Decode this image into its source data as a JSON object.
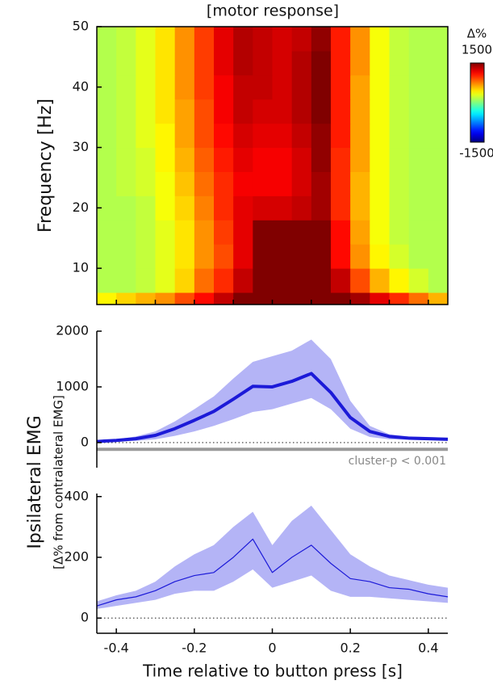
{
  "chart_data": [
    {
      "type": "heatmap",
      "title": "[motor response]",
      "ylabel": "Frequency [Hz]",
      "colormap": "jet",
      "clim": [
        -1500,
        1500
      ],
      "cticks": [
        -1500,
        1500
      ],
      "colorbar_label": "Δ%",
      "xlim": [
        -0.45,
        0.45
      ],
      "ylim": [
        4,
        50
      ],
      "xticks": [
        -0.4,
        -0.3,
        -0.2,
        -0.1,
        0,
        0.1,
        0.2,
        0.3,
        0.4
      ],
      "yticks": [
        10,
        20,
        30,
        40,
        50
      ],
      "x": [
        -0.45,
        -0.4,
        -0.35,
        -0.3,
        -0.25,
        -0.2,
        -0.15,
        -0.1,
        -0.05,
        0,
        0.05,
        0.1,
        0.15,
        0.2,
        0.25,
        0.3,
        0.35,
        0.4,
        0.45
      ],
      "y": [
        4,
        6,
        10,
        14,
        18,
        22,
        26,
        30,
        34,
        38,
        42,
        46,
        50
      ],
      "values": [
        [
          400,
          500,
          600,
          700,
          900,
          1100,
          1300,
          1500,
          1500,
          1500,
          1500,
          1500,
          1500,
          1400,
          1200,
          1000,
          800,
          600
        ],
        [
          150,
          150,
          200,
          300,
          500,
          800,
          1000,
          1300,
          1500,
          1500,
          1500,
          1500,
          1300,
          900,
          600,
          400,
          250,
          150
        ],
        [
          150,
          150,
          200,
          300,
          450,
          700,
          900,
          1200,
          1500,
          1500,
          1500,
          1500,
          1100,
          700,
          400,
          250,
          150,
          150
        ],
        [
          150,
          150,
          200,
          300,
          450,
          700,
          950,
          1200,
          1500,
          1500,
          1500,
          1500,
          1100,
          650,
          350,
          200,
          150,
          150
        ],
        [
          150,
          150,
          200,
          350,
          500,
          750,
          1000,
          1200,
          1250,
          1250,
          1300,
          1400,
          1000,
          600,
          350,
          200,
          150,
          150
        ],
        [
          150,
          200,
          250,
          350,
          550,
          800,
          1000,
          1150,
          1150,
          1150,
          1250,
          1400,
          1000,
          600,
          350,
          200,
          150,
          150
        ],
        [
          150,
          200,
          250,
          400,
          600,
          850,
          1050,
          1200,
          1150,
          1150,
          1250,
          1450,
          1000,
          650,
          350,
          200,
          150,
          150
        ],
        [
          150,
          200,
          300,
          400,
          650,
          900,
          1100,
          1250,
          1200,
          1200,
          1300,
          1450,
          1050,
          650,
          350,
          200,
          150,
          150
        ],
        [
          150,
          200,
          300,
          450,
          650,
          900,
          1150,
          1300,
          1250,
          1250,
          1350,
          1500,
          1050,
          650,
          350,
          200,
          150,
          150
        ],
        [
          150,
          200,
          300,
          450,
          700,
          950,
          1150,
          1300,
          1300,
          1250,
          1350,
          1500,
          1050,
          650,
          350,
          200,
          150,
          150
        ],
        [
          150,
          200,
          300,
          450,
          700,
          950,
          1200,
          1350,
          1300,
          1250,
          1350,
          1500,
          1050,
          700,
          350,
          200,
          150,
          150
        ],
        [
          150,
          200,
          300,
          450,
          700,
          950,
          1200,
          1350,
          1300,
          1250,
          1300,
          1450,
          1050,
          700,
          350,
          200,
          150,
          150
        ]
      ]
    },
    {
      "type": "line",
      "ylabel": "Ipsilateral EMG",
      "ylabel_sub": "[Δ% from contralateral EMG]",
      "xlim": [
        -0.45,
        0.45
      ],
      "ylim": [
        -450,
        2000
      ],
      "yticks": [
        0,
        1000,
        2000
      ],
      "color": "#1c1ad8",
      "band_color": "#b4b4f6",
      "line_width": 4,
      "cluster": {
        "label": "cluster-p < 0.001",
        "y": -120
      },
      "x": [
        -0.45,
        -0.4,
        -0.35,
        -0.3,
        -0.25,
        -0.2,
        -0.15,
        -0.1,
        -0.05,
        0,
        0.05,
        0.1,
        0.15,
        0.2,
        0.25,
        0.3,
        0.35,
        0.4,
        0.45
      ],
      "values": [
        20,
        40,
        70,
        130,
        250,
        400,
        560,
        780,
        1010,
        1000,
        1100,
        1240,
        900,
        450,
        200,
        110,
        80,
        70,
        60
      ],
      "upper": [
        40,
        60,
        110,
        200,
        380,
        600,
        830,
        1150,
        1450,
        1550,
        1650,
        1850,
        1500,
        750,
        300,
        150,
        110,
        100,
        90
      ],
      "lower": [
        10,
        20,
        30,
        60,
        120,
        200,
        300,
        420,
        550,
        600,
        700,
        800,
        600,
        250,
        100,
        60,
        50,
        45,
        40
      ]
    },
    {
      "type": "line",
      "xlabel": "Time relative to button press [s]",
      "xlim": [
        -0.45,
        0.45
      ],
      "ylim": [
        -50,
        410
      ],
      "yticks": [
        0,
        200,
        400
      ],
      "xticks": [
        -0.4,
        -0.2,
        0,
        0.2,
        0.4
      ],
      "color": "#1c1ad8",
      "band_color": "#b4b4f6",
      "line_width": 1.2,
      "x": [
        -0.45,
        -0.4,
        -0.35,
        -0.3,
        -0.25,
        -0.2,
        -0.15,
        -0.1,
        -0.05,
        0,
        0.05,
        0.1,
        0.15,
        0.2,
        0.25,
        0.3,
        0.35,
        0.4,
        0.45
      ],
      "values": [
        40,
        60,
        70,
        90,
        120,
        140,
        150,
        200,
        260,
        150,
        200,
        240,
        180,
        130,
        120,
        100,
        95,
        80,
        70
      ],
      "upper": [
        55,
        75,
        90,
        120,
        170,
        210,
        240,
        300,
        350,
        240,
        320,
        370,
        290,
        210,
        170,
        140,
        125,
        110,
        100
      ],
      "lower": [
        30,
        40,
        50,
        60,
        80,
        90,
        90,
        120,
        160,
        100,
        120,
        140,
        90,
        70,
        70,
        65,
        60,
        55,
        50
      ]
    }
  ]
}
